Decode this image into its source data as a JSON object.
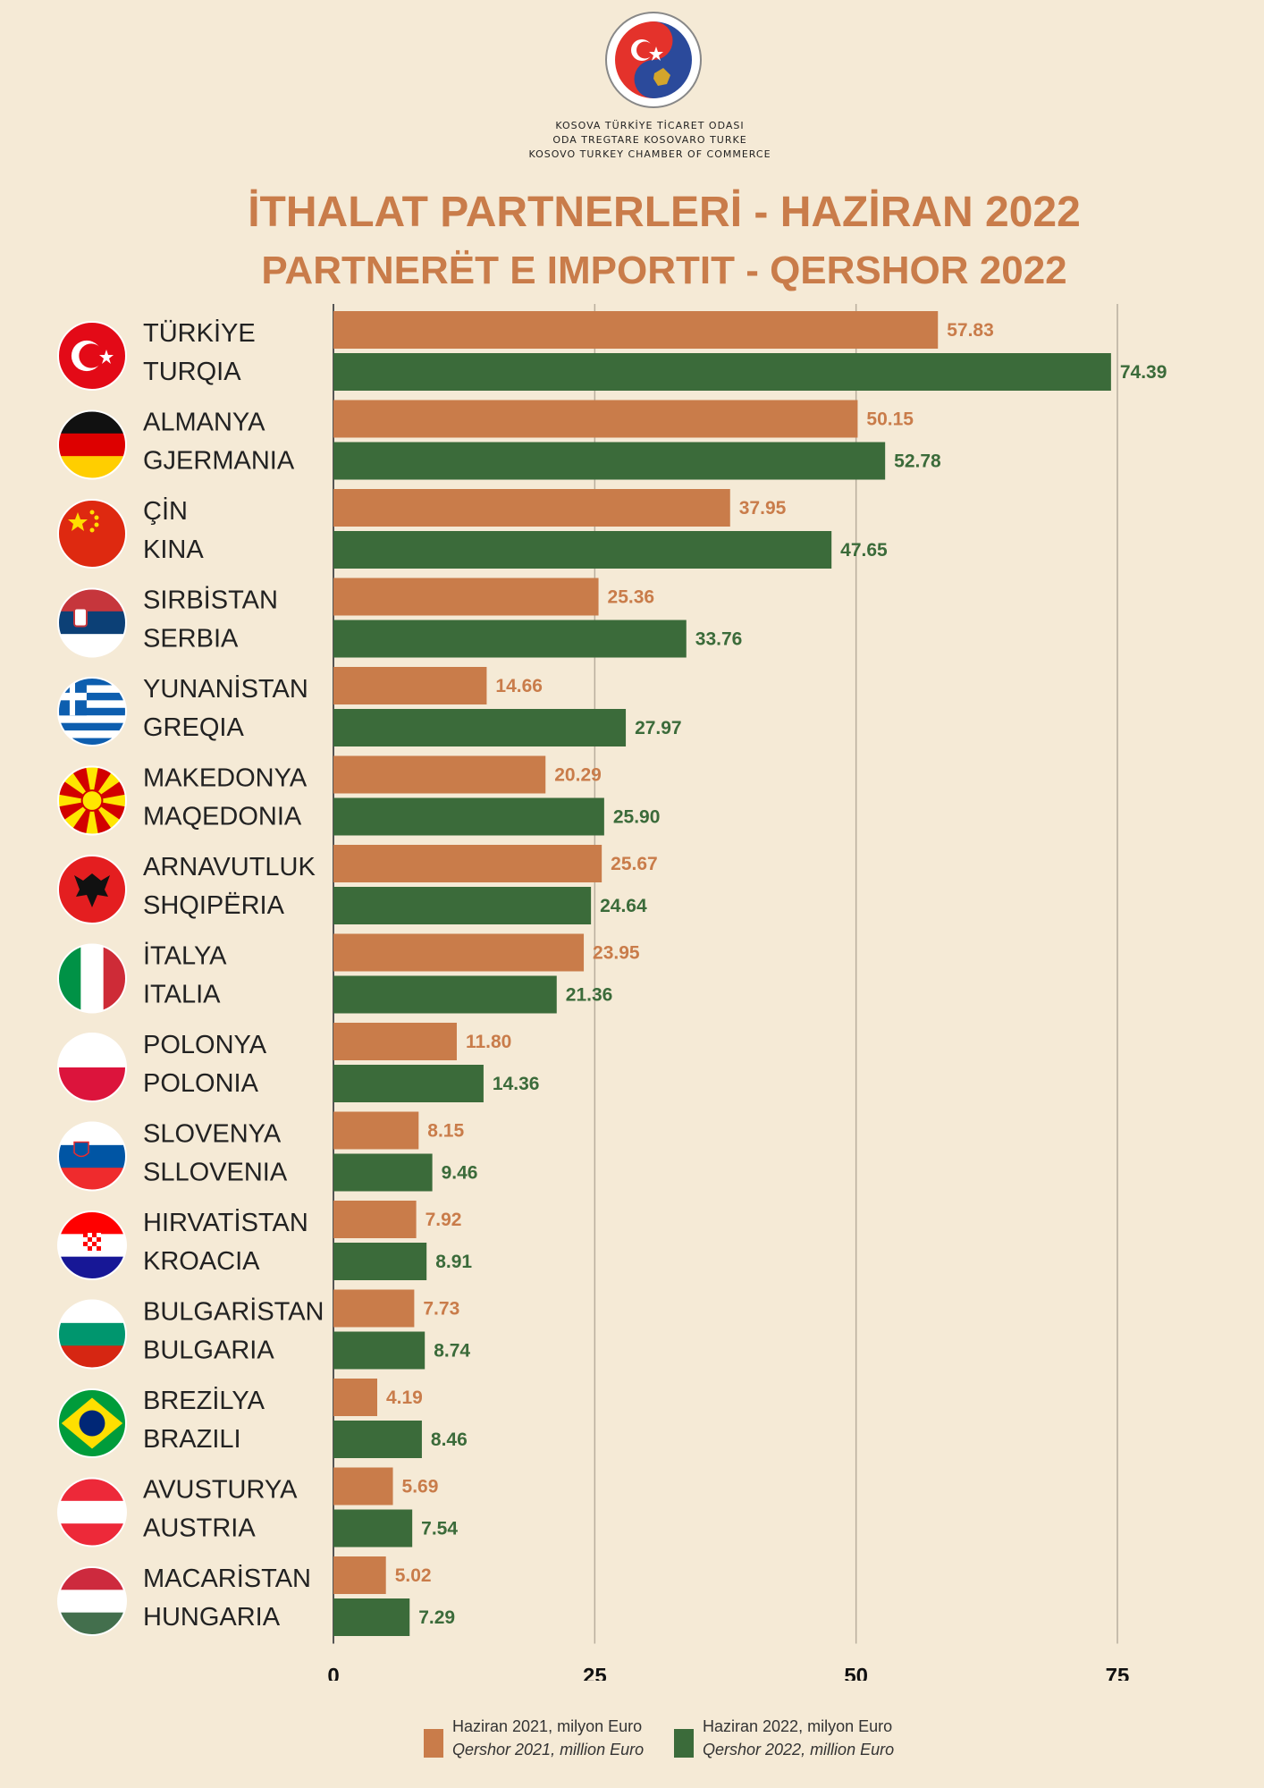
{
  "header": {
    "org_lines": [
      "KOSOVA TÜRKİYE TİCARET ODASI",
      "ODA TREGTARE KOSOVARO TURKE",
      "KOSOVO TURKEY CHAMBER OF COMMERCE"
    ],
    "logo_text": "ODA TREGTARE KOSOVARO TURKE · KOSOVA TÜRKİYE TİCARET ODASI",
    "title_tr": "İTHALAT PARTNERLERİ - HAZİRAN 2022",
    "title_sq": "PARTNERËT E IMPORTIT - QERSHOR 2022"
  },
  "colors": {
    "background": "#f5ead6",
    "y2021": "#c97c4a",
    "y2022": "#3b6b3a"
  },
  "legend": {
    "s2021_line1": "Haziran  2021, milyon Euro",
    "s2021_line2": "Qershor 2021, million Euro",
    "s2022_line1": "Haziran 2022, milyon Euro",
    "s2022_line2": "Qershor 2022, million Euro"
  },
  "chart_data": {
    "type": "bar",
    "orientation": "horizontal",
    "xlim": [
      0,
      75
    ],
    "xticks": [
      0,
      25,
      50,
      75
    ],
    "grid": true,
    "legend_position": "bottom",
    "categories": [
      {
        "tr": "TÜRKİYE",
        "sq": "TURQIA",
        "flag": "turkey-flag-icon"
      },
      {
        "tr": "ALMANYA",
        "sq": "GJERMANIA",
        "flag": "germany-flag-icon"
      },
      {
        "tr": "ÇİN",
        "sq": "KINA",
        "flag": "china-flag-icon"
      },
      {
        "tr": "SIRBİSTAN",
        "sq": "SERBIA",
        "flag": "serbia-flag-icon"
      },
      {
        "tr": "YUNANİSTAN",
        "sq": "GREQIA",
        "flag": "greece-flag-icon"
      },
      {
        "tr": "MAKEDONYA",
        "sq": "MAQEDONIA",
        "flag": "macedonia-flag-icon"
      },
      {
        "tr": "ARNAVUTLUK",
        "sq": "SHQIPËRIA",
        "flag": "albania-flag-icon"
      },
      {
        "tr": "İTALYA",
        "sq": "ITALIA",
        "flag": "italy-flag-icon"
      },
      {
        "tr": "POLONYA",
        "sq": "POLONIA",
        "flag": "poland-flag-icon"
      },
      {
        "tr": "SLOVENYA",
        "sq": "SLLOVENIA",
        "flag": "slovenia-flag-icon"
      },
      {
        "tr": "HIRVATİSTAN",
        "sq": "KROACIA",
        "flag": "croatia-flag-icon"
      },
      {
        "tr": "BULGARİSTAN",
        "sq": "BULGARIA",
        "flag": "bulgaria-flag-icon"
      },
      {
        "tr": "BREZİLYA",
        "sq": "BRAZILI",
        "flag": "brazil-flag-icon"
      },
      {
        "tr": "AVUSTURYA",
        "sq": "AUSTRIA",
        "flag": "austria-flag-icon"
      },
      {
        "tr": "MACARİSTAN",
        "sq": "HUNGARIA",
        "flag": "hungary-flag-icon"
      }
    ],
    "series": [
      {
        "name": "Haziran  2021, milyon Euro / Qershor 2021, million Euro",
        "values": [
          57.83,
          50.15,
          37.95,
          25.36,
          14.66,
          20.29,
          25.67,
          23.95,
          11.8,
          8.15,
          7.92,
          7.73,
          4.19,
          5.69,
          5.02
        ],
        "labels": [
          "57.83",
          "50.15",
          "37.95",
          "25.36",
          "14.66",
          "20.29",
          "25.67",
          "23.95",
          "11.80",
          "8.15",
          "7.92",
          "7.73",
          "4.19",
          "5.69",
          "5.02"
        ]
      },
      {
        "name": "Haziran 2022, milyon Euro / Qershor 2022, million Euro",
        "values": [
          74.39,
          52.78,
          47.65,
          33.76,
          27.97,
          25.9,
          24.64,
          21.36,
          14.36,
          9.46,
          8.91,
          8.74,
          8.46,
          7.54,
          7.29
        ],
        "labels": [
          "74.39",
          "52.78",
          "47.65",
          "33.76",
          "27.97",
          "25.90",
          "24.64",
          "21.36",
          "14.36",
          "9.46",
          "8.91",
          "8.74",
          "8.46",
          "7.54",
          "7.29"
        ]
      }
    ]
  }
}
